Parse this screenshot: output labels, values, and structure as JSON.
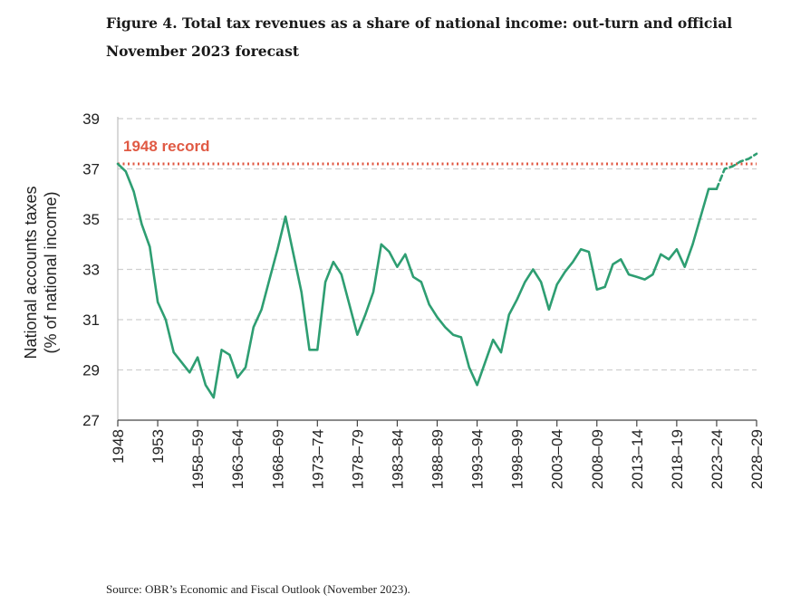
{
  "figure_title": "Figure 4. Total tax revenues as a share of national income: out-turn and official November 2023 forecast",
  "source": "Source: OBR’s Economic and Fiscal Outlook (November 2023).",
  "chart_data": {
    "type": "line",
    "title": "",
    "ylabel_line1": "National accounts taxes",
    "ylabel_line2": "(% of national income)",
    "xlabel": "",
    "ylim": [
      27,
      39
    ],
    "yticks": [
      27,
      29,
      31,
      33,
      35,
      37,
      39
    ],
    "xlim": [
      1948,
      2028
    ],
    "xticks": [
      {
        "x": 1948,
        "label": "1948"
      },
      {
        "x": 1953,
        "label": "1953"
      },
      {
        "x": 1958,
        "label": "1958–59"
      },
      {
        "x": 1963,
        "label": "1963–64"
      },
      {
        "x": 1968,
        "label": "1968–69"
      },
      {
        "x": 1973,
        "label": "1973–74"
      },
      {
        "x": 1978,
        "label": "1978–79"
      },
      {
        "x": 1983,
        "label": "1983–84"
      },
      {
        "x": 1988,
        "label": "1988–89"
      },
      {
        "x": 1993,
        "label": "1993–94"
      },
      {
        "x": 1998,
        "label": "1998–99"
      },
      {
        "x": 2003,
        "label": "2003–04"
      },
      {
        "x": 2008,
        "label": "2008–09"
      },
      {
        "x": 2013,
        "label": "2013–14"
      },
      {
        "x": 2018,
        "label": "2018–19"
      },
      {
        "x": 2023,
        "label": "2023–24"
      },
      {
        "x": 2028,
        "label": "2028–29"
      }
    ],
    "grid": "horizontal dashed",
    "reference_line": {
      "label": "1948 record",
      "value": 37.2,
      "color": "#e05a44",
      "style": "dotted"
    },
    "series": [
      {
        "style": "solid",
        "color": "#2e9e72",
        "x": [
          1948,
          1949,
          1950,
          1951,
          1952,
          1953,
          1954,
          1955,
          1956,
          1957,
          1958,
          1959,
          1960,
          1961,
          1962,
          1963,
          1964,
          1965,
          1966,
          1967,
          1968,
          1969,
          1970,
          1971,
          1972,
          1973,
          1974,
          1975,
          1976,
          1977,
          1978,
          1979,
          1980,
          1981,
          1982,
          1983,
          1984,
          1985,
          1986,
          1987,
          1988,
          1989,
          1990,
          1991,
          1992,
          1993,
          1994,
          1995,
          1996,
          1997,
          1998,
          1999,
          2000,
          2001,
          2002,
          2003,
          2004,
          2005,
          2006,
          2007,
          2008,
          2009,
          2010,
          2011,
          2012,
          2013,
          2014,
          2015,
          2016,
          2017,
          2018,
          2019,
          2020,
          2021,
          2022,
          2023
        ],
        "values": [
          37.2,
          36.9,
          36.1,
          34.8,
          33.9,
          31.7,
          31.0,
          29.7,
          29.3,
          28.9,
          29.5,
          28.4,
          27.9,
          29.8,
          29.6,
          28.7,
          29.1,
          30.7,
          31.4,
          32.6,
          33.8,
          35.1,
          33.6,
          32.1,
          29.8,
          29.8,
          32.5,
          33.3,
          32.8,
          31.6,
          30.4,
          31.2,
          32.1,
          34.0,
          33.7,
          33.1,
          33.6,
          32.7,
          32.5,
          31.6,
          31.1,
          30.7,
          30.4,
          30.3,
          29.1,
          28.4,
          29.3,
          30.2,
          29.7,
          31.2,
          31.8,
          32.5,
          33.0,
          32.5,
          31.4,
          32.4,
          32.9,
          33.3,
          33.8,
          33.7,
          32.2,
          32.3,
          33.2,
          33.4,
          32.8,
          32.7,
          32.6,
          32.8,
          33.6,
          33.4,
          33.8,
          33.1,
          34.0,
          35.1,
          36.2,
          36.2
        ]
      },
      {
        "style": "dashed",
        "color": "#2e9e72",
        "x": [
          2023,
          2024,
          2025,
          2026,
          2027,
          2028
        ],
        "values": [
          36.2,
          37.0,
          37.1,
          37.3,
          37.4,
          37.6
        ]
      }
    ]
  }
}
